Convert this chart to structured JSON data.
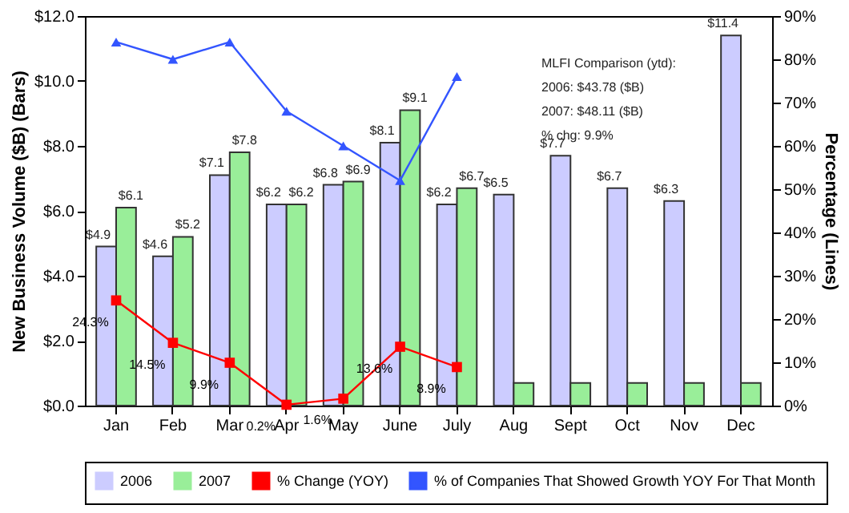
{
  "chart_data": {
    "type": "bar",
    "ylabel": "New Business Volume ($B) (Bars)",
    "y2label": "Percentage (Lines)",
    "categories": [
      "Jan",
      "Feb",
      "Mar",
      "Apr",
      "May",
      "June",
      "July",
      "Aug",
      "Sept",
      "Oct",
      "Nov",
      "Dec"
    ],
    "series": [
      {
        "name": "2006",
        "color": "#ccccff",
        "values": [
          4.9,
          4.6,
          7.1,
          6.2,
          6.8,
          8.1,
          6.2,
          6.5,
          7.7,
          6.7,
          6.3,
          11.4
        ],
        "value_labels": [
          "$4.9",
          "$4.6",
          "$7.1",
          "$6.2",
          "$6.8",
          "$8.1",
          "$6.2",
          "$6.5",
          "$7.7",
          "$6.7",
          "$6.3",
          "$11.4"
        ]
      },
      {
        "name": "2007",
        "color": "#99ee99",
        "values": [
          6.1,
          5.2,
          7.8,
          6.2,
          6.9,
          9.1,
          6.7,
          0.7,
          0.7,
          0.7,
          0.7,
          0.7
        ],
        "value_labels": [
          "$6.1",
          "$5.2",
          "$7.8",
          "$6.2",
          "$6.9",
          "$9.1",
          "$6.7",
          null,
          null,
          null,
          null,
          null
        ]
      },
      {
        "name": "% Change (YOY)",
        "type": "line",
        "axis": "y2",
        "marker": "square",
        "color": "#ff0000",
        "values": [
          24.3,
          14.5,
          9.9,
          0.2,
          1.6,
          13.6,
          8.9,
          null,
          null,
          null,
          null,
          null
        ],
        "value_labels": [
          "24.3%",
          "14.5%",
          "9.9%",
          "0.2%",
          "1.6%",
          "13.6%",
          "8.9%",
          null,
          null,
          null,
          null,
          null
        ]
      },
      {
        "name": "% of Companies That Showed Growth YOY For That Month",
        "type": "line",
        "axis": "y2",
        "marker": "triangle",
        "color": "#3355ff",
        "values": [
          84,
          80,
          84,
          68,
          60,
          52,
          76,
          null,
          null,
          null,
          null,
          null
        ]
      }
    ],
    "ylim": [
      0,
      12
    ],
    "yticks": [
      {
        "value": 0,
        "label": "$0.0"
      },
      {
        "value": 2,
        "label": "$2.0"
      },
      {
        "value": 4,
        "label": "$4.0"
      },
      {
        "value": 6,
        "label": "$6.0"
      },
      {
        "value": 8,
        "label": "$8.0"
      },
      {
        "value": 10,
        "label": "$10.0"
      },
      {
        "value": 12,
        "label": "$12.0"
      }
    ],
    "y2lim": [
      0,
      90
    ],
    "y2ticks": [
      {
        "value": 0,
        "label": "0%"
      },
      {
        "value": 10,
        "label": "10%"
      },
      {
        "value": 20,
        "label": "20%"
      },
      {
        "value": 30,
        "label": "30%"
      },
      {
        "value": 40,
        "label": "40%"
      },
      {
        "value": 50,
        "label": "50%"
      },
      {
        "value": 60,
        "label": "60%"
      },
      {
        "value": 70,
        "label": "70%"
      },
      {
        "value": 80,
        "label": "80%"
      },
      {
        "value": 90,
        "label": "90%"
      }
    ],
    "annotations": [
      "MLFI Comparison (ytd):",
      "2006: $43.78 ($B)",
      "2007: $48.11 ($B)",
      "% chg:  9.9%"
    ],
    "grid": false,
    "legend": "bottom"
  }
}
